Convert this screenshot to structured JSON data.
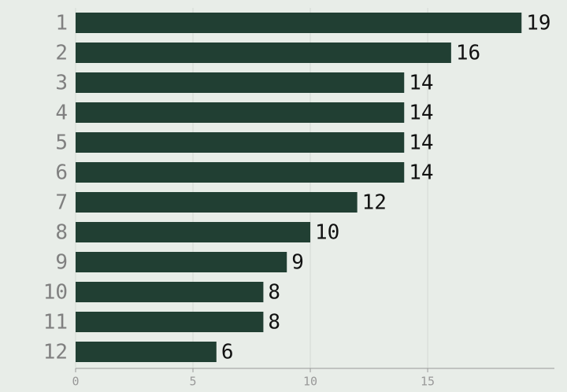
{
  "chart_data": {
    "type": "bar",
    "orientation": "horizontal",
    "categories": [
      "1",
      "2",
      "3",
      "4",
      "5",
      "6",
      "7",
      "8",
      "9",
      "10",
      "11",
      "12"
    ],
    "values": [
      19,
      16,
      14,
      14,
      14,
      14,
      12,
      10,
      9,
      8,
      8,
      6
    ],
    "color": "#213f33",
    "xlim": [
      0,
      20.4
    ],
    "xticks": [
      0,
      5,
      10,
      15
    ],
    "grid": true
  }
}
